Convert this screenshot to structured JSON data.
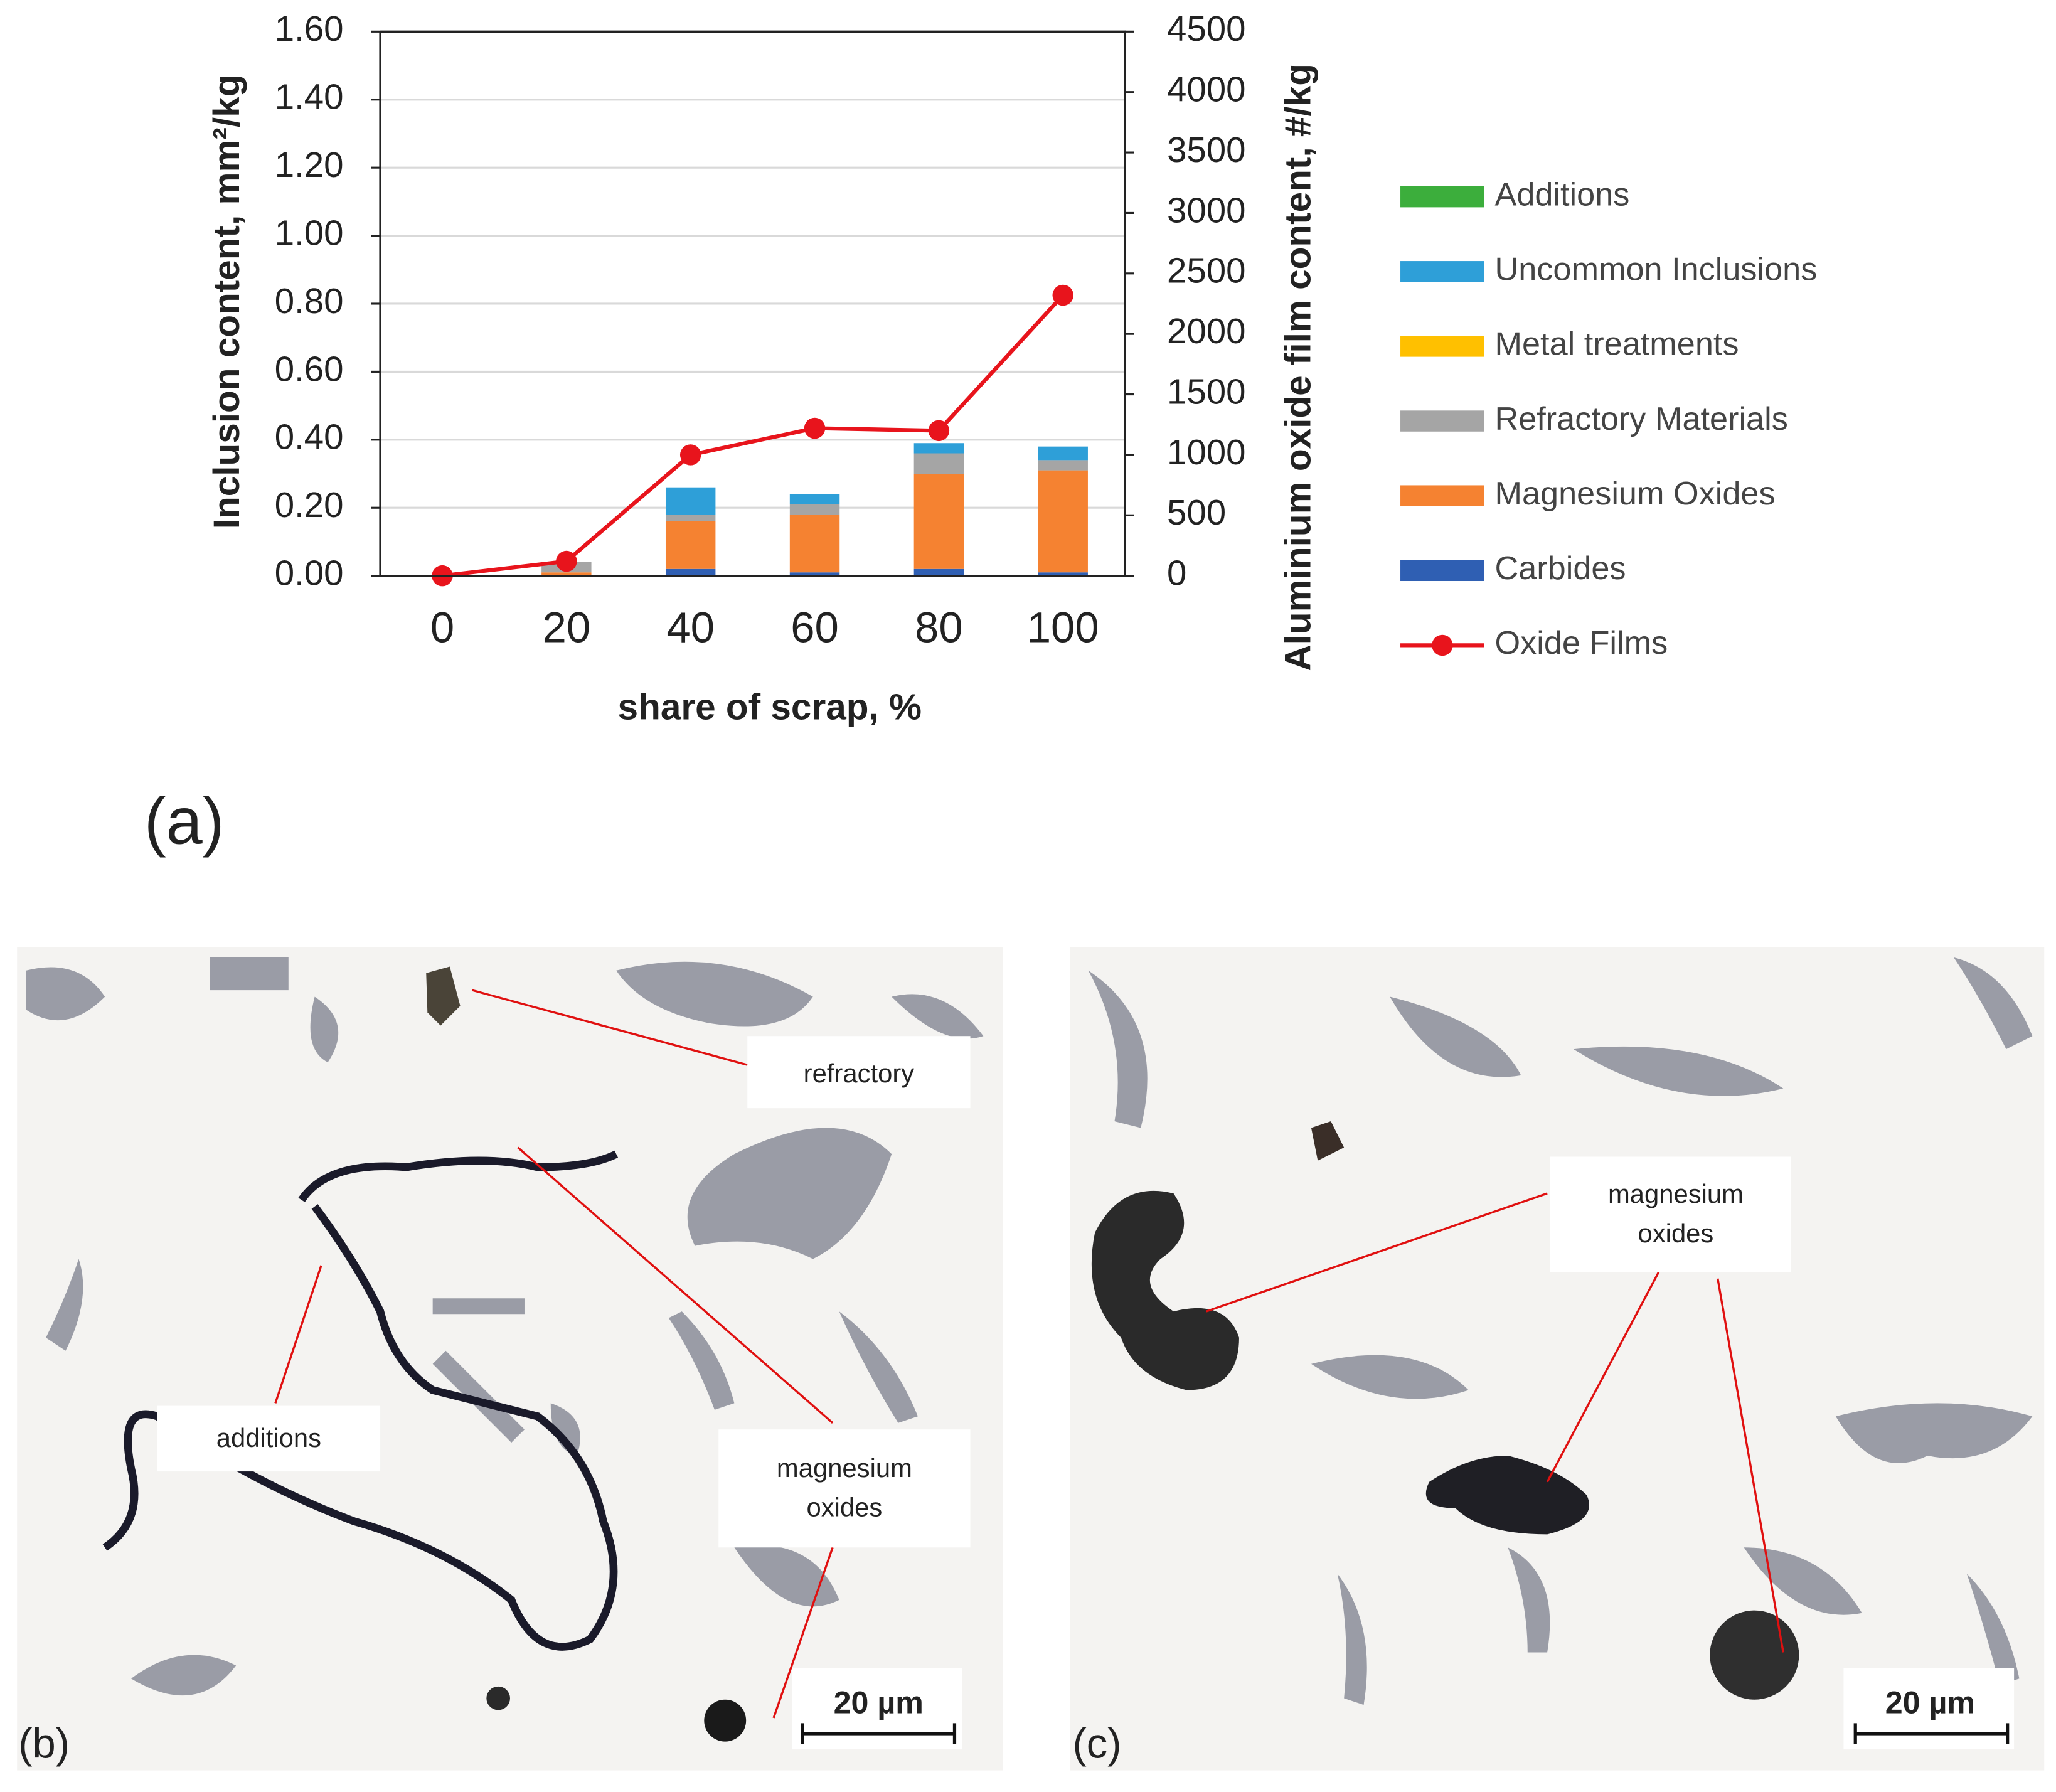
{
  "chart_data": {
    "type": "bar",
    "stacked": true,
    "categories": [
      "0",
      "20",
      "40",
      "60",
      "80",
      "100"
    ],
    "series": [
      {
        "name": "Carbides",
        "color": "#2f5fb3",
        "values": [
          0,
          0,
          0.02,
          0.01,
          0.02,
          0.01
        ]
      },
      {
        "name": "Magnesium Oxides",
        "color": "#f58231",
        "values": [
          0,
          0.01,
          0.14,
          0.17,
          0.28,
          0.3
        ]
      },
      {
        "name": "Refractory Materials",
        "color": "#a5a5a5",
        "values": [
          0,
          0.03,
          0.02,
          0.03,
          0.06,
          0.03
        ]
      },
      {
        "name": "Metal treatments",
        "color": "#ffc000",
        "values": [
          0,
          0,
          0,
          0,
          0,
          0
        ]
      },
      {
        "name": "Uncommon Inclusions",
        "color": "#2e9fd8",
        "values": [
          0,
          0,
          0.08,
          0.03,
          0.03,
          0.04
        ]
      },
      {
        "name": "Additions",
        "color": "#3cae3c",
        "values": [
          0,
          0,
          0,
          0,
          0,
          0
        ]
      },
      {
        "name": "Oxide Films",
        "color": "#e8141c",
        "type": "line",
        "axis": "y2",
        "values": [
          0,
          120,
          1000,
          1220,
          1200,
          2320
        ]
      }
    ],
    "xlabel": "share of scrap, %",
    "ylabel": "Inclusion content, mm²/kg",
    "y2label": "Aluminium oxide film content, #/kg",
    "ylim": [
      0,
      1.6
    ],
    "yticks": [
      {
        "value": 0,
        "label": "0.00"
      },
      {
        "value": 0.2,
        "label": "0.20"
      },
      {
        "value": 0.4,
        "label": "0.40"
      },
      {
        "value": 0.6,
        "label": "0.60"
      },
      {
        "value": 0.8,
        "label": "0.80"
      },
      {
        "value": 1,
        "label": "1.00"
      },
      {
        "value": 1.2,
        "label": "1.20"
      },
      {
        "value": 1.4,
        "label": "1.40"
      },
      {
        "value": 1.6,
        "label": "1.60"
      }
    ],
    "y2lim": [
      0,
      4500
    ],
    "y2ticks": [
      0,
      500,
      1000,
      1500,
      2000,
      2500,
      3000,
      3500,
      4000,
      4500
    ],
    "grid": true,
    "legend": "right"
  },
  "figure": {
    "panel_labels": [
      "(a)",
      "(b)",
      "(c)"
    ],
    "micrographs": [
      {
        "annotations": [
          {
            "lines": [
              "refractory"
            ]
          },
          {
            "lines": [
              "additions"
            ]
          },
          {
            "lines": [
              "magnesium",
              "oxides"
            ]
          }
        ],
        "scale_bar": "20 µm"
      },
      {
        "annotations": [
          {
            "lines": [
              "magnesium",
              "oxides"
            ]
          }
        ],
        "scale_bar": "20 µm"
      }
    ]
  }
}
